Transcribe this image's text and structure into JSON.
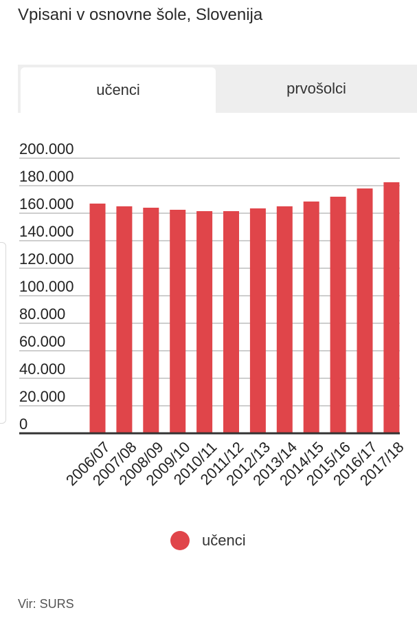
{
  "title": "Vpisani v osnovne šole, Slovenija",
  "tabs": {
    "active": "učenci",
    "inactive": "prvošolci"
  },
  "legend": {
    "label": "učenci",
    "color": "#e0454a"
  },
  "source": "Vir: SURS",
  "chart_data": {
    "type": "bar",
    "categories": [
      "2006/07",
      "2007/08",
      "2008/09",
      "2009/10",
      "2010/11",
      "2011/12",
      "2012/13",
      "2013/14",
      "2014/15",
      "2015/16",
      "2016/17",
      "2017/18"
    ],
    "series": [
      {
        "name": "učenci",
        "color": "#e0454a",
        "values": [
          167000,
          165000,
          164000,
          162500,
          161500,
          161500,
          163500,
          165000,
          168500,
          172000,
          178000,
          182500
        ]
      }
    ],
    "ylim": [
      0,
      200000
    ],
    "yticks": [
      "0",
      "20.000",
      "40.000",
      "60.000",
      "80.000",
      "100.000",
      "120.000",
      "140.000",
      "160.000",
      "180.000",
      "200.000"
    ],
    "grid": true
  }
}
